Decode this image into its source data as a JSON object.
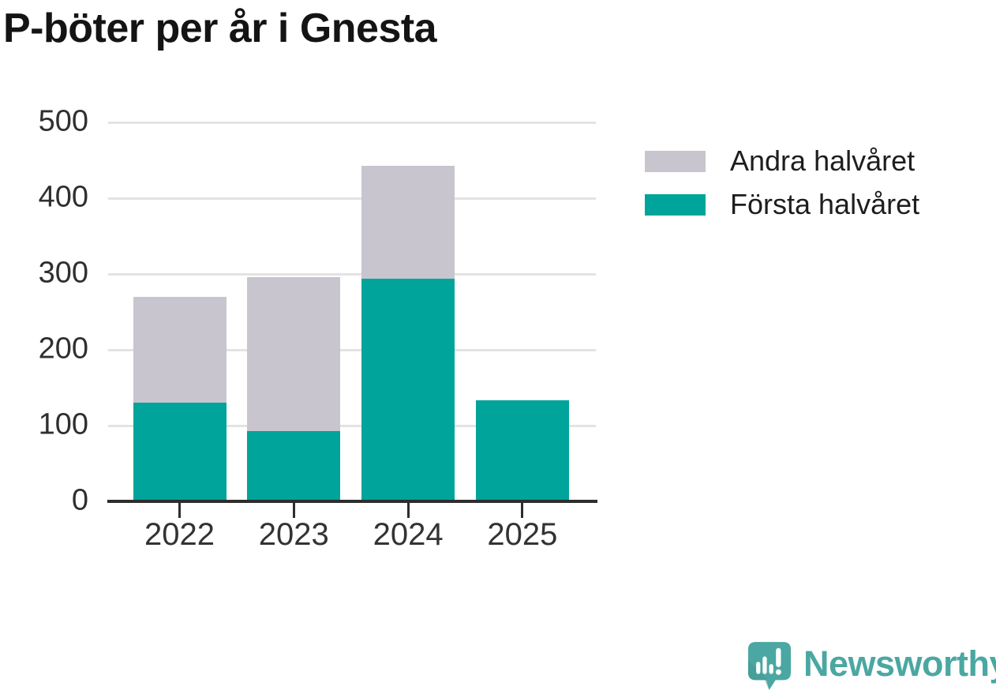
{
  "title": "P-böter per år i Gnesta",
  "chart_data": {
    "type": "bar",
    "stacked": true,
    "title": "P-böter per år i Gnesta",
    "categories": [
      "2022",
      "2023",
      "2024",
      "2025"
    ],
    "series": [
      {
        "name": "Första halvåret",
        "color": "#00a49b",
        "values": [
          130,
          93,
          294,
          133
        ]
      },
      {
        "name": "Andra halvåret",
        "color": "#c8c5cf",
        "values": [
          140,
          203,
          149,
          0
        ]
      }
    ],
    "totals": [
      270,
      296,
      443,
      133
    ],
    "xlabel": "",
    "ylabel": "",
    "ylim": [
      0,
      500
    ],
    "yticks": [
      0,
      100,
      200,
      300,
      400,
      500
    ],
    "grid": true,
    "legend_position": "right",
    "legend_order": [
      "Andra halvåret",
      "Första halvåret"
    ]
  },
  "branding": {
    "logo_text": "Newsworthy",
    "logo_color": "#4ba7a2"
  },
  "colors": {
    "axis": "#2d2d2d",
    "gridline": "#e3e3e3",
    "tick_label": "#333333",
    "title": "#141414"
  }
}
